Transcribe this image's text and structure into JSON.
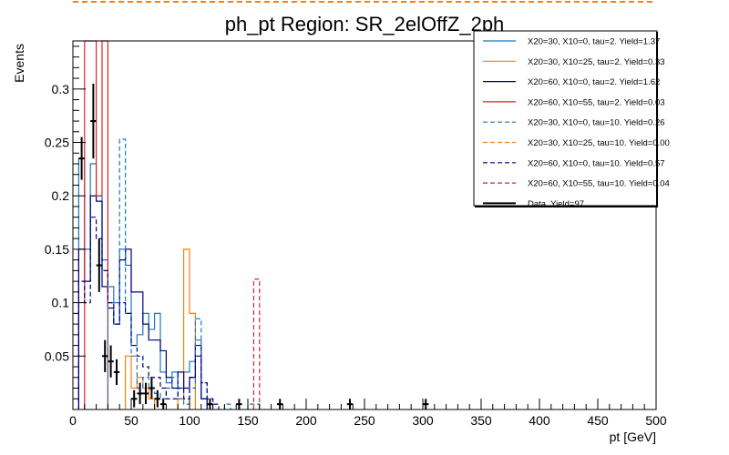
{
  "chart_data": {
    "type": "histogram",
    "title": "ph_pt Region: SR_2elOffZ_2ph",
    "xlabel": "pt [GeV]",
    "ylabel": "Events",
    "xlim": [
      0,
      500
    ],
    "ylim": [
      0,
      0.345
    ],
    "bin_width": 5,
    "x_ticks": [
      0,
      50,
      100,
      150,
      200,
      250,
      300,
      350,
      400,
      450,
      500
    ],
    "y_ticks": [
      0.05,
      0.1,
      0.15,
      0.2,
      0.25,
      0.3
    ],
    "legend_position": "top-right",
    "series": [
      {
        "name": "X20=30, X10=0, tau=2. Yield=1.37",
        "color": "#1f77b4",
        "dash": "solid",
        "bins": [
          [
            5,
            0.235
          ],
          [
            10,
            0.15
          ],
          [
            15,
            0.23
          ],
          [
            20,
            0.2
          ],
          [
            25,
            0.14
          ],
          [
            30,
            0.115
          ],
          [
            35,
            0.1
          ],
          [
            40,
            0.15
          ],
          [
            45,
            0.135
          ],
          [
            50,
            0.06
          ],
          [
            55,
            0.07
          ],
          [
            60,
            0.09
          ],
          [
            65,
            0.075
          ],
          [
            70,
            0.09
          ],
          [
            75,
            0.035
          ],
          [
            80,
            0.025
          ],
          [
            85,
            0.035
          ],
          [
            90,
            0.02
          ],
          [
            95,
            0.035
          ],
          [
            100,
            0.045
          ],
          [
            105,
            0.065
          ],
          [
            110,
            0.01
          ]
        ]
      },
      {
        "name": "X20=30, X10=25, tau=2. Yield=0.33",
        "color": "#ff7f0e",
        "dash": "solid",
        "bins": [
          [
            45,
            0.05
          ],
          [
            50,
            0.02
          ],
          [
            55,
            0.03
          ],
          [
            60,
            0.02
          ],
          [
            65,
            0.01
          ],
          [
            90,
            0.01
          ],
          [
            95,
            0.15
          ],
          [
            100,
            0.09
          ]
        ]
      },
      {
        "name": "X20=60, X10=0, tau=2. Yield=1.62",
        "color": "#000080",
        "dash": "solid",
        "bins": [
          [
            5,
            0.15
          ],
          [
            10,
            0.12
          ],
          [
            15,
            0.2
          ],
          [
            20,
            0.195
          ],
          [
            25,
            0.115
          ],
          [
            30,
            0.095
          ],
          [
            35,
            0.08
          ],
          [
            40,
            0.14
          ],
          [
            45,
            0.15
          ],
          [
            50,
            0.11
          ],
          [
            55,
            0.11
          ],
          [
            60,
            0.08
          ],
          [
            65,
            0.065
          ],
          [
            70,
            0.065
          ],
          [
            75,
            0.055
          ],
          [
            80,
            0.03
          ],
          [
            85,
            0.02
          ],
          [
            90,
            0.035
          ],
          [
            95,
            0.02
          ],
          [
            100,
            0.03
          ],
          [
            105,
            0.06
          ],
          [
            110,
            0.01
          ]
        ]
      },
      {
        "name": "X20=60, X10=55, tau=2. Yield=0.03",
        "color": "#d62728",
        "dash": "solid",
        "bins": [
          [
            10,
            0.345
          ],
          [
            15,
            0.345
          ],
          [
            20,
            0.2
          ],
          [
            25,
            0.345
          ]
        ]
      },
      {
        "name": "X20=30, X10=0, tau=10. Yield=0.26",
        "color": "#1f77b4",
        "dash": "dashed",
        "bins": [
          [
            30,
            0.1
          ],
          [
            35,
            0.08
          ],
          [
            40,
            0.253
          ],
          [
            45,
            0.09
          ],
          [
            50,
            0.05
          ],
          [
            55,
            0.02
          ],
          [
            60,
            0.03
          ],
          [
            65,
            0.02
          ],
          [
            70,
            0.015
          ],
          [
            75,
            0.01
          ],
          [
            80,
            0.02
          ],
          [
            85,
            0.03
          ],
          [
            90,
            0.01
          ],
          [
            95,
            0.005
          ],
          [
            100,
            0.02
          ],
          [
            105,
            0.085
          ],
          [
            110,
            0.025
          ],
          [
            115,
            0.01
          ],
          [
            130,
            0.005
          ],
          [
            150,
            0.005
          ],
          [
            155,
            0.005
          ]
        ]
      },
      {
        "name": "X20=30, X10=25, tau=10. Yield=0.00",
        "color": "#ff7f0e",
        "dash": "dashed",
        "bins": []
      },
      {
        "name": "X20=60, X10=0, tau=10. Yield=0.57",
        "color": "#000080",
        "dash": "dashed",
        "bins": [
          [
            5,
            0.12
          ],
          [
            10,
            0.1
          ],
          [
            15,
            0.18
          ],
          [
            20,
            0.16
          ],
          [
            25,
            0.13
          ],
          [
            30,
            0.1
          ],
          [
            35,
            0.08
          ],
          [
            40,
            0.1
          ],
          [
            45,
            0.09
          ],
          [
            50,
            0.06
          ],
          [
            55,
            0.05
          ],
          [
            60,
            0.04
          ],
          [
            65,
            0.03
          ],
          [
            70,
            0.03
          ],
          [
            75,
            0.02
          ],
          [
            80,
            0.01
          ],
          [
            85,
            0.01
          ],
          [
            90,
            0.02
          ],
          [
            95,
            0.01
          ],
          [
            100,
            0.03
          ],
          [
            105,
            0.05
          ],
          [
            110,
            0.025
          ],
          [
            115,
            0.01
          ],
          [
            120,
            0.005
          ]
        ]
      },
      {
        "name": "X20=60, X10=55, tau=10. Yield=0.04",
        "color": "#d62728",
        "dash": "dashed",
        "bins": [
          [
            155,
            0.122
          ]
        ]
      }
    ],
    "data": {
      "name": "Data. Yield=97",
      "color": "#000000",
      "points": [
        {
          "x": 7.5,
          "y": 0.235,
          "err": 0.02
        },
        {
          "x": 17.5,
          "y": 0.27,
          "err": 0.035
        },
        {
          "x": 22.5,
          "y": 0.135,
          "err": 0.025
        },
        {
          "x": 27.5,
          "y": 0.05,
          "err": 0.015
        },
        {
          "x": 32.5,
          "y": 0.045,
          "err": 0.015
        },
        {
          "x": 37.5,
          "y": 0.035,
          "err": 0.012
        },
        {
          "x": 52.5,
          "y": 0.01,
          "err": 0.008
        },
        {
          "x": 57.5,
          "y": 0.015,
          "err": 0.01
        },
        {
          "x": 62.5,
          "y": 0.015,
          "err": 0.01
        },
        {
          "x": 67.5,
          "y": 0.02,
          "err": 0.01
        },
        {
          "x": 72.5,
          "y": 0.01,
          "err": 0.008
        },
        {
          "x": 77.5,
          "y": 0.005,
          "err": 0.005
        },
        {
          "x": 117.5,
          "y": 0.005,
          "err": 0.005
        },
        {
          "x": 142.5,
          "y": 0.005,
          "err": 0.005
        },
        {
          "x": 177.5,
          "y": 0.005,
          "err": 0.005
        },
        {
          "x": 237.5,
          "y": 0.005,
          "err": 0.005
        },
        {
          "x": 302.5,
          "y": 0.005,
          "err": 0.005
        }
      ]
    }
  }
}
